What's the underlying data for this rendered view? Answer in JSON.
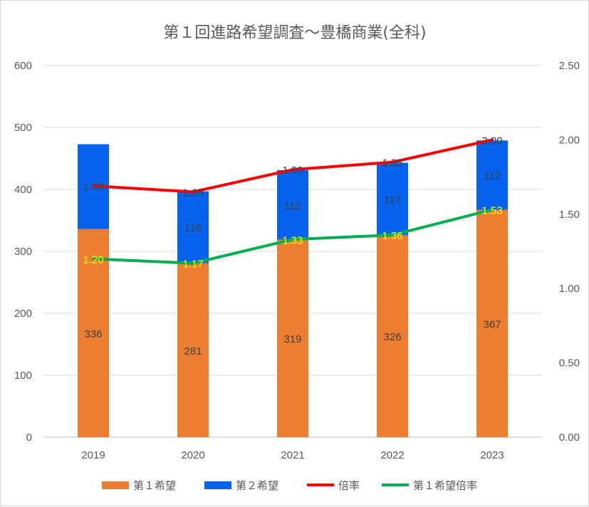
{
  "chart_data": {
    "type": "bar",
    "title": "第１回進路希望調査～豊橋商業(全科)",
    "categories": [
      "2019",
      "2020",
      "2021",
      "2022",
      "2023"
    ],
    "series": [
      {
        "name": "第１希望",
        "kind": "bar",
        "axis": "left",
        "color": "#ed7d31",
        "values": [
          336,
          281,
          319,
          326,
          367
        ]
      },
      {
        "name": "第２希望",
        "kind": "bar",
        "axis": "left",
        "color": "#0563f0",
        "values": [
          137,
          116,
          112,
          117,
          112
        ]
      },
      {
        "name": "倍率",
        "kind": "line",
        "axis": "right",
        "color": "#ff0000",
        "values": [
          1.69,
          1.65,
          1.8,
          1.85,
          2.0
        ]
      },
      {
        "name": "第１希望倍率",
        "kind": "line",
        "axis": "right",
        "color": "#00b050",
        "values": [
          1.2,
          1.17,
          1.33,
          1.36,
          1.53
        ]
      }
    ],
    "bar_labels": {
      "第１希望": [
        "336",
        "281",
        "319",
        "326",
        "367"
      ],
      "第２希望": [
        "",
        "116",
        "112",
        "117",
        "112"
      ]
    },
    "line_labels": {
      "倍率": [
        "1.69",
        "1.65",
        "1.80",
        "1.85",
        "2.00"
      ],
      "第１希望倍率": [
        "1.20",
        "1.17",
        "1.33",
        "1.36",
        "1.53"
      ]
    },
    "left_axis": {
      "min": 0,
      "max": 600,
      "ticks": [
        "0",
        "100",
        "200",
        "300",
        "400",
        "500",
        "600"
      ]
    },
    "right_axis": {
      "min": 0,
      "max": 2.5,
      "ticks": [
        "0.00",
        "0.50",
        "1.00",
        "1.50",
        "2.00",
        "2.50"
      ]
    },
    "grid": true,
    "legend_position": "bottom"
  }
}
